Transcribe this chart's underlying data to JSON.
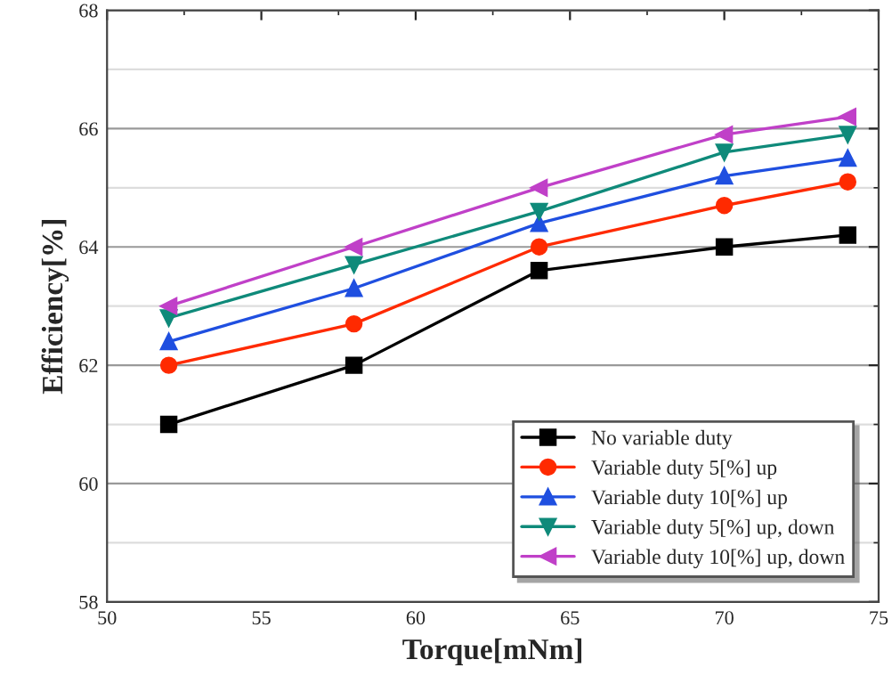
{
  "chart_data": {
    "type": "line",
    "xlabel": "Torque[mNm]",
    "ylabel": "Efficiency[%]",
    "x": [
      52,
      58,
      64,
      70,
      74
    ],
    "xlim": [
      50,
      75
    ],
    "xticks": [
      50,
      55,
      60,
      65,
      70,
      75
    ],
    "ylim": [
      58,
      68
    ],
    "yticks": [
      58,
      60,
      62,
      64,
      66,
      68
    ],
    "grid": "y",
    "legend": "bottom right",
    "series": [
      {
        "name": "No variable duty",
        "color": "#000000",
        "marker": "square",
        "values": [
          61,
          62,
          63.6,
          64,
          64.2
        ]
      },
      {
        "name": "Variable duty 5[%] up",
        "color": "#ff2a00",
        "marker": "circle",
        "values": [
          62,
          62.7,
          64,
          64.7,
          65.1
        ]
      },
      {
        "name": "Variable duty 10[%] up",
        "color": "#1f4fe0",
        "marker": "triangle",
        "values": [
          62.4,
          63.3,
          64.4,
          65.2,
          65.5
        ]
      },
      {
        "name": "Variable duty 5[%] up, down",
        "color": "#0f8a7a",
        "marker": "triangle_down",
        "values": [
          62.8,
          63.7,
          64.6,
          65.6,
          65.9
        ]
      },
      {
        "name": "Variable duty 10[%] up, down",
        "color": "#c040c8",
        "marker": "triangle_left",
        "values": [
          63,
          64,
          65,
          65.9,
          66.2
        ]
      }
    ]
  }
}
